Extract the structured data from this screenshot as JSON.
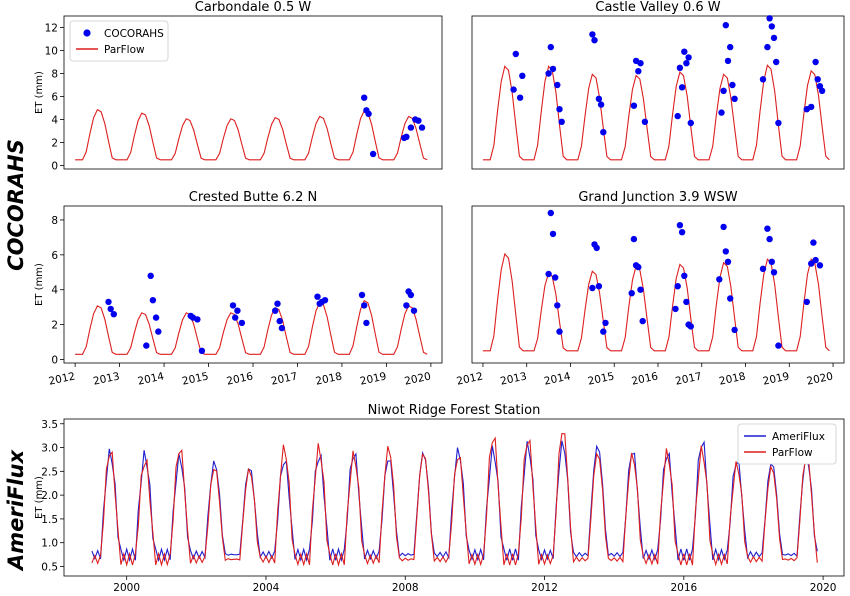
{
  "row_labels": [
    "COCORAHS",
    "AmeriFlux"
  ],
  "colors": {
    "obs": "#0000ee",
    "ameriflux": "#1f1fcf",
    "parflow": "#dd1f1f"
  },
  "chart_data": [
    {
      "type": "scatter",
      "title": "Carbondale 0.5 W",
      "ylabel": "ET (mm)",
      "xlim": [
        2011.75,
        2020.25
      ],
      "ylim": [
        -0.3,
        13
      ],
      "yticks": [
        0,
        2,
        4,
        6,
        8,
        10,
        12
      ],
      "xticks": [],
      "legend": {
        "position": "top-left",
        "entries": [
          "COCORAHS",
          "ParFlow"
        ]
      },
      "parflow": {
        "start": 2012.0,
        "step": 0.08333,
        "min": 0.5,
        "peak_default": 4.9,
        "peaks": {
          "2012": 4.9,
          "2013": 4.6,
          "2014": 4.1,
          "2015": 4.1,
          "2016": 4.2,
          "2017": 4.3,
          "2018": 4.8,
          "2019": 4.3
        }
      },
      "observations": [
        {
          "x": 2018.5,
          "y": 5.9
        },
        {
          "x": 2018.55,
          "y": 4.8
        },
        {
          "x": 2018.6,
          "y": 4.5
        },
        {
          "x": 2018.7,
          "y": 1.0
        },
        {
          "x": 2019.4,
          "y": 2.4
        },
        {
          "x": 2019.45,
          "y": 2.5
        },
        {
          "x": 2019.55,
          "y": 3.3
        },
        {
          "x": 2019.65,
          "y": 4.0
        },
        {
          "x": 2019.72,
          "y": 3.9
        },
        {
          "x": 2019.8,
          "y": 3.3
        }
      ]
    },
    {
      "type": "scatter",
      "title": "Castle Valley 0.6 W",
      "ylabel": "",
      "xlim": [
        2011.75,
        2020.25
      ],
      "ylim": [
        -0.3,
        13
      ],
      "yticks": [],
      "xticks": [],
      "parflow": {
        "start": 2012.0,
        "step": 0.08333,
        "min": 0.5,
        "peak_default": 8.7,
        "peaks": {
          "2012": 8.7,
          "2013": 8.7,
          "2014": 8.0,
          "2015": 7.9,
          "2016": 8.2,
          "2017": 8.0,
          "2018": 8.8,
          "2019": 8.3
        }
      },
      "observations": [
        {
          "x": 2012.7,
          "y": 6.6
        },
        {
          "x": 2012.75,
          "y": 9.7
        },
        {
          "x": 2012.85,
          "y": 5.9
        },
        {
          "x": 2012.9,
          "y": 7.8
        },
        {
          "x": 2013.5,
          "y": 8.0
        },
        {
          "x": 2013.55,
          "y": 10.3
        },
        {
          "x": 2013.6,
          "y": 8.4
        },
        {
          "x": 2013.7,
          "y": 7.0
        },
        {
          "x": 2013.75,
          "y": 4.9
        },
        {
          "x": 2013.8,
          "y": 3.8
        },
        {
          "x": 2014.5,
          "y": 11.4
        },
        {
          "x": 2014.55,
          "y": 10.9
        },
        {
          "x": 2014.65,
          "y": 5.8
        },
        {
          "x": 2014.7,
          "y": 5.3
        },
        {
          "x": 2014.75,
          "y": 2.9
        },
        {
          "x": 2015.5,
          "y": 9.1
        },
        {
          "x": 2015.55,
          "y": 8.2
        },
        {
          "x": 2015.6,
          "y": 8.9
        },
        {
          "x": 2015.45,
          "y": 5.2
        },
        {
          "x": 2015.7,
          "y": 3.8
        },
        {
          "x": 2016.45,
          "y": 4.3
        },
        {
          "x": 2016.5,
          "y": 8.5
        },
        {
          "x": 2016.55,
          "y": 6.8
        },
        {
          "x": 2016.6,
          "y": 9.9
        },
        {
          "x": 2016.65,
          "y": 8.9
        },
        {
          "x": 2016.7,
          "y": 9.4
        },
        {
          "x": 2016.75,
          "y": 3.7
        },
        {
          "x": 2017.45,
          "y": 4.6
        },
        {
          "x": 2017.5,
          "y": 6.5
        },
        {
          "x": 2017.55,
          "y": 12.2
        },
        {
          "x": 2017.6,
          "y": 9.1
        },
        {
          "x": 2017.65,
          "y": 10.3
        },
        {
          "x": 2017.7,
          "y": 7.0
        },
        {
          "x": 2017.75,
          "y": 5.8
        },
        {
          "x": 2018.4,
          "y": 7.5
        },
        {
          "x": 2018.5,
          "y": 10.3
        },
        {
          "x": 2018.55,
          "y": 12.8
        },
        {
          "x": 2018.6,
          "y": 12.1
        },
        {
          "x": 2018.65,
          "y": 11.1
        },
        {
          "x": 2018.7,
          "y": 9.0
        },
        {
          "x": 2018.75,
          "y": 3.7
        },
        {
          "x": 2019.4,
          "y": 4.9
        },
        {
          "x": 2019.5,
          "y": 5.1
        },
        {
          "x": 2019.6,
          "y": 9.0
        },
        {
          "x": 2019.65,
          "y": 7.5
        },
        {
          "x": 2019.7,
          "y": 6.9
        },
        {
          "x": 2019.75,
          "y": 6.5
        }
      ]
    },
    {
      "type": "scatter",
      "title": "Crested Butte 6.2 N",
      "ylabel": "ET (mm)",
      "xlim": [
        2011.75,
        2020.25
      ],
      "ylim": [
        -0.2,
        8.8
      ],
      "yticks": [
        0,
        2,
        4,
        6,
        8
      ],
      "xticks": [
        2012,
        2013,
        2014,
        2015,
        2016,
        2017,
        2018,
        2019,
        2020
      ],
      "parflow": {
        "start": 2012.0,
        "step": 0.08333,
        "min": 0.3,
        "peak_default": 3.1,
        "peaks": {
          "2012": 3.1,
          "2013": 2.7,
          "2014": 2.7,
          "2015": 2.7,
          "2016": 3.0,
          "2017": 3.3,
          "2018": 3.4,
          "2019": 3.1
        }
      },
      "observations": [
        {
          "x": 2012.75,
          "y": 3.3
        },
        {
          "x": 2012.8,
          "y": 2.9
        },
        {
          "x": 2012.87,
          "y": 2.6
        },
        {
          "x": 2013.6,
          "y": 0.8
        },
        {
          "x": 2013.7,
          "y": 4.8
        },
        {
          "x": 2013.75,
          "y": 3.4
        },
        {
          "x": 2013.82,
          "y": 2.4
        },
        {
          "x": 2013.87,
          "y": 1.6
        },
        {
          "x": 2014.6,
          "y": 2.5
        },
        {
          "x": 2014.65,
          "y": 2.4
        },
        {
          "x": 2014.75,
          "y": 2.3
        },
        {
          "x": 2014.85,
          "y": 0.5
        },
        {
          "x": 2015.55,
          "y": 3.1
        },
        {
          "x": 2015.6,
          "y": 2.4
        },
        {
          "x": 2015.65,
          "y": 2.8
        },
        {
          "x": 2015.75,
          "y": 2.1
        },
        {
          "x": 2016.5,
          "y": 2.8
        },
        {
          "x": 2016.55,
          "y": 3.2
        },
        {
          "x": 2016.6,
          "y": 2.2
        },
        {
          "x": 2016.65,
          "y": 1.8
        },
        {
          "x": 2017.45,
          "y": 3.6
        },
        {
          "x": 2017.5,
          "y": 3.2
        },
        {
          "x": 2017.55,
          "y": 3.3
        },
        {
          "x": 2017.62,
          "y": 3.4
        },
        {
          "x": 2018.45,
          "y": 3.7
        },
        {
          "x": 2018.5,
          "y": 3.1
        },
        {
          "x": 2018.55,
          "y": 2.1
        },
        {
          "x": 2019.45,
          "y": 3.1
        },
        {
          "x": 2019.5,
          "y": 3.9
        },
        {
          "x": 2019.55,
          "y": 3.7
        },
        {
          "x": 2019.62,
          "y": 2.8
        }
      ]
    },
    {
      "type": "scatter",
      "title": "Grand Junction 3.9 WSW",
      "ylabel": "",
      "xlim": [
        2011.75,
        2020.25
      ],
      "ylim": [
        -0.2,
        8.8
      ],
      "yticks": [],
      "xticks": [
        2012,
        2013,
        2014,
        2015,
        2016,
        2017,
        2018,
        2019,
        2020
      ],
      "parflow": {
        "start": 2012.0,
        "step": 0.08333,
        "min": 0.5,
        "peak_default": 6.1,
        "peaks": {
          "2012": 6.1,
          "2013": 5.0,
          "2014": 5.1,
          "2015": 5.4,
          "2016": 5.5,
          "2017": 5.6,
          "2018": 5.8,
          "2019": 5.8
        }
      },
      "observations": [
        {
          "x": 2013.5,
          "y": 4.9
        },
        {
          "x": 2013.55,
          "y": 8.4
        },
        {
          "x": 2013.6,
          "y": 7.2
        },
        {
          "x": 2013.65,
          "y": 4.7
        },
        {
          "x": 2013.7,
          "y": 3.1
        },
        {
          "x": 2013.75,
          "y": 1.6
        },
        {
          "x": 2014.5,
          "y": 4.1
        },
        {
          "x": 2014.55,
          "y": 6.6
        },
        {
          "x": 2014.6,
          "y": 6.4
        },
        {
          "x": 2014.65,
          "y": 4.2
        },
        {
          "x": 2014.75,
          "y": 1.6
        },
        {
          "x": 2014.8,
          "y": 2.1
        },
        {
          "x": 2015.4,
          "y": 3.8
        },
        {
          "x": 2015.45,
          "y": 6.9
        },
        {
          "x": 2015.5,
          "y": 5.4
        },
        {
          "x": 2015.55,
          "y": 5.3
        },
        {
          "x": 2015.6,
          "y": 4.0
        },
        {
          "x": 2015.65,
          "y": 2.2
        },
        {
          "x": 2016.4,
          "y": 2.9
        },
        {
          "x": 2016.45,
          "y": 4.2
        },
        {
          "x": 2016.5,
          "y": 7.7
        },
        {
          "x": 2016.55,
          "y": 7.3
        },
        {
          "x": 2016.6,
          "y": 4.8
        },
        {
          "x": 2016.65,
          "y": 3.3
        },
        {
          "x": 2016.7,
          "y": 2.0
        },
        {
          "x": 2016.75,
          "y": 1.9
        },
        {
          "x": 2017.4,
          "y": 4.6
        },
        {
          "x": 2017.5,
          "y": 7.6
        },
        {
          "x": 2017.55,
          "y": 6.2
        },
        {
          "x": 2017.6,
          "y": 5.6
        },
        {
          "x": 2017.65,
          "y": 3.5
        },
        {
          "x": 2017.75,
          "y": 1.7
        },
        {
          "x": 2018.4,
          "y": 5.2
        },
        {
          "x": 2018.5,
          "y": 7.5
        },
        {
          "x": 2018.55,
          "y": 6.9
        },
        {
          "x": 2018.6,
          "y": 5.6
        },
        {
          "x": 2018.65,
          "y": 5.0
        },
        {
          "x": 2018.75,
          "y": 0.8
        },
        {
          "x": 2019.4,
          "y": 3.3
        },
        {
          "x": 2019.5,
          "y": 5.5
        },
        {
          "x": 2019.55,
          "y": 6.7
        },
        {
          "x": 2019.6,
          "y": 5.7
        },
        {
          "x": 2019.7,
          "y": 5.4
        }
      ]
    },
    {
      "type": "line",
      "title": "Niwot Ridge Forest Station",
      "ylabel": "ET (mm)",
      "xlim": [
        1998.2,
        2020.6
      ],
      "ylim": [
        0.3,
        3.6
      ],
      "yticks": [
        0.5,
        1.0,
        1.5,
        2.0,
        2.5,
        3.0,
        3.5
      ],
      "ytick_labels": [
        "0.5",
        "1.0",
        "1.5",
        "2.0",
        "2.5",
        "3.0",
        "3.5"
      ],
      "xticks": [
        2000,
        2004,
        2008,
        2012,
        2016,
        2020
      ],
      "legend": {
        "position": "top-right",
        "entries": [
          "AmeriFlux",
          "ParFlow"
        ]
      },
      "series": {
        "start": 1999.0,
        "step": 0.08333,
        "ameriflux_peaks": [
          2.9,
          2.85,
          2.8,
          2.7,
          2.6,
          2.75,
          2.85,
          2.9,
          2.8,
          2.9,
          2.95,
          2.95,
          3.05,
          3.1,
          3.05,
          2.95,
          2.9,
          3.15,
          2.75,
          2.7,
          2.8
        ],
        "parflow_peaks": [
          2.95,
          2.75,
          3.0,
          2.6,
          2.55,
          3.0,
          3.0,
          2.85,
          3.0,
          2.9,
          2.85,
          3.25,
          3.2,
          3.4,
          2.9,
          2.85,
          2.9,
          2.95,
          2.65,
          2.6,
          2.85
        ],
        "ameriflux_min": 0.75,
        "parflow_min": 0.65
      }
    }
  ]
}
